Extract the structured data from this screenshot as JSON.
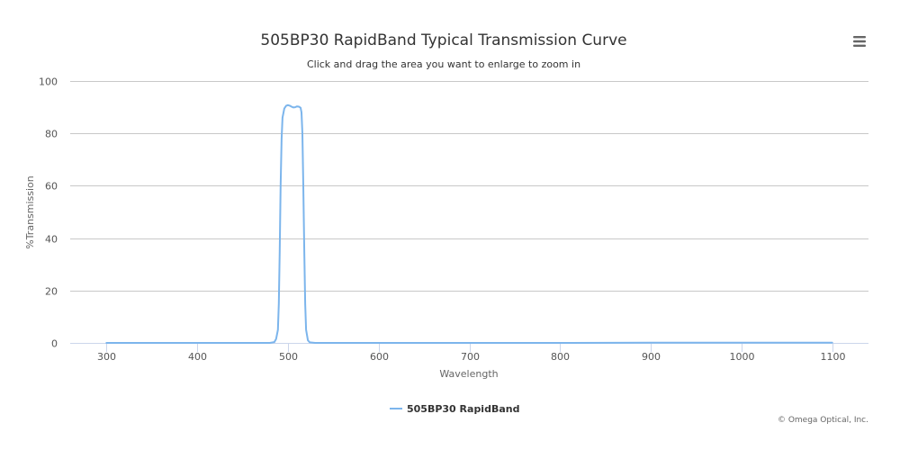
{
  "colors": {
    "series": "#7cb5ec",
    "grid": "#c8c8c8",
    "axis": "#ccd6eb",
    "menu_icon": "#666666"
  },
  "menu": {
    "icon": "hamburger-menu-icon"
  },
  "credits": "© Omega Optical, Inc.",
  "chart_data": {
    "type": "line",
    "title": "505BP30 RapidBand Typical Transmission Curve",
    "subtitle": "Click and drag the area you want to enlarge to zoom in",
    "xlabel": "Wavelength",
    "ylabel": "%Transmission",
    "xlim": [
      260,
      1140
    ],
    "ylim": [
      0,
      100
    ],
    "x_ticks": [
      300,
      400,
      500,
      600,
      700,
      800,
      900,
      1000,
      1100
    ],
    "y_ticks": [
      0,
      20,
      40,
      60,
      80,
      100
    ],
    "grid": true,
    "legend_position": "bottom-center",
    "series": [
      {
        "name": "505BP30 RapidBand",
        "x": [
          300,
          400,
          480,
          485,
          487,
          489,
          490,
          491,
          492,
          493,
          494,
          496,
          498,
          500,
          502,
          504,
          506,
          508,
          510,
          512,
          514,
          515,
          516,
          517,
          518,
          519,
          520,
          522,
          524,
          530,
          600,
          700,
          800,
          900,
          1000,
          1100
        ],
        "y": [
          0,
          0,
          0,
          0.3,
          1.5,
          5,
          15,
          35,
          60,
          78,
          86,
          89.5,
          90.5,
          90.8,
          90.6,
          90.2,
          89.9,
          90.0,
          90.3,
          90.2,
          89.8,
          88,
          80,
          60,
          35,
          15,
          5,
          1,
          0.2,
          0,
          0,
          0,
          0,
          0.1,
          0.1,
          0.1
        ]
      }
    ]
  }
}
